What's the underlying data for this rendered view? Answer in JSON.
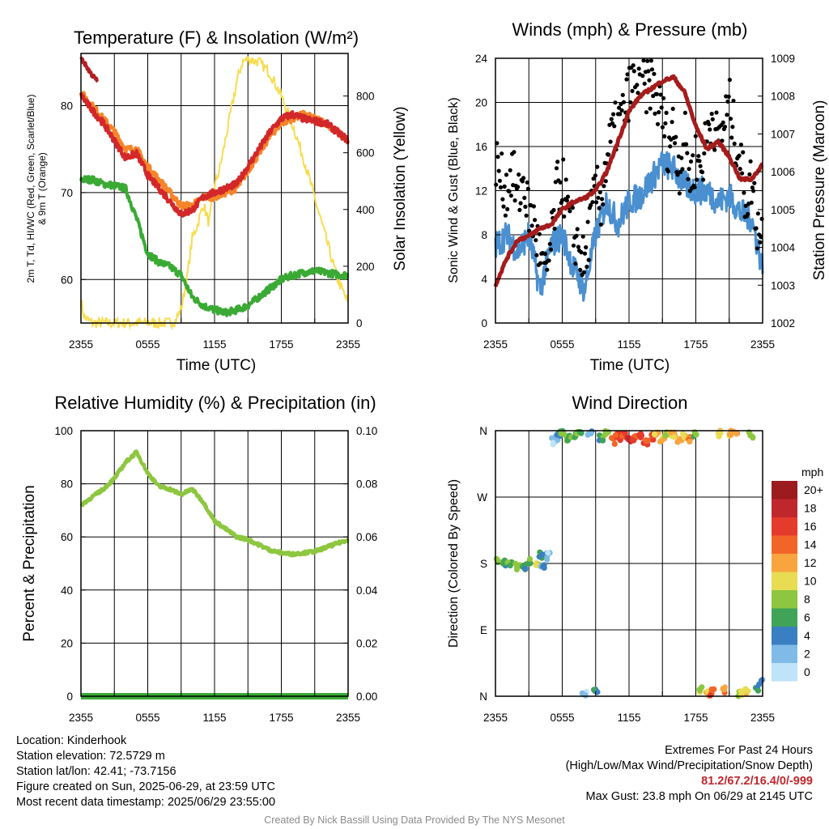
{
  "panels": {
    "temp": {
      "title": "Temperature (F) & Insolation (W/m²)",
      "ylabel_left": [
        "2m T, Td, HI/WC (Red, Green, Scarlet/Blue)",
        "& 9m T (Orange)"
      ],
      "ylabel_right": "Solar Insolation (Yellow)",
      "xlabel": "Time (UTC)"
    },
    "winds": {
      "title": "Winds (mph) & Pressure (mb)",
      "ylabel_left": "Sonic Wind & Gust (Blue, Black)",
      "ylabel_right": "Station Pressure (Maroon)",
      "xlabel": "Time (UTC)"
    },
    "rh": {
      "title": "Relative Humidity (%) & Precipitation (in)",
      "ylabel_left": "Percent & Precipitation"
    },
    "wdir": {
      "title": "Wind Direction",
      "ylabel_left": "Direction (Colored By Speed)",
      "legend_title": "mph",
      "legend_labels": [
        "20+",
        "18",
        "16",
        "14",
        "12",
        "10",
        "8",
        "6",
        "4",
        "2",
        "0"
      ],
      "legend_colors": [
        "#9b1b1e",
        "#c0272d",
        "#e53b2c",
        "#f16528",
        "#f9a53f",
        "#e8dc52",
        "#8dc63f",
        "#3fa457",
        "#3a7fc1",
        "#7fbbe6",
        "#bfe3f8"
      ]
    }
  },
  "colors": {
    "temp": "#d3282a",
    "temp9m": "#f58529",
    "dewpoint": "#3aaa35",
    "heatindex": "#b22025",
    "solar": "#f7dc4f",
    "wind": "#4a90d0",
    "gust": "#000000",
    "pressure": "#a51c1c",
    "rh": "#8dc63f",
    "precip": "#3aaa35"
  },
  "chart_data": [
    {
      "type": "line",
      "title": "Temperature (F) & Insolation (W/m²)",
      "xlabel": "Time (UTC)",
      "x_ticks": [
        "2355",
        "0555",
        "1155",
        "1755",
        "2355"
      ],
      "ylim_left": [
        55,
        86
      ],
      "yticks_left": [
        "60",
        "70",
        "80"
      ],
      "ylim_right": [
        0,
        950
      ],
      "yticks_right": [
        "0",
        "200",
        "400",
        "600",
        "800"
      ],
      "series": [
        {
          "name": "2m T",
          "axis": "left",
          "x": [
            0,
            1,
            2,
            3,
            4,
            5,
            6,
            7,
            8,
            9,
            10,
            11,
            12,
            13,
            14,
            15,
            16,
            17,
            18,
            19,
            20,
            21,
            22,
            23,
            24
          ],
          "y": [
            81.2,
            79.5,
            78,
            76,
            74,
            74.5,
            72,
            70.5,
            69,
            67.5,
            68,
            69.5,
            70,
            70.5,
            71,
            73,
            75,
            77,
            78.5,
            79,
            78.5,
            78.2,
            78,
            77,
            76
          ]
        },
        {
          "name": "9m T",
          "axis": "left",
          "x": [
            0,
            1,
            2,
            3,
            4,
            5,
            6,
            7,
            8,
            9,
            10,
            11,
            12,
            13,
            14,
            15,
            16,
            17,
            18,
            19,
            20,
            21,
            22,
            23,
            24
          ],
          "y": [
            81.5,
            80,
            78.5,
            77,
            75,
            75,
            73,
            71.5,
            70,
            68.5,
            68.5,
            69.5,
            69.5,
            70,
            70.5,
            72.5,
            74.5,
            76.5,
            78,
            78.5,
            79,
            78.5,
            78,
            77,
            76
          ]
        },
        {
          "name": "Td",
          "axis": "left",
          "x": [
            0,
            1,
            2,
            3,
            4,
            5,
            6,
            7,
            8,
            9,
            10,
            11,
            12,
            13,
            14,
            15,
            16,
            17,
            18,
            19,
            20,
            21,
            22,
            23,
            24
          ],
          "y": [
            71.5,
            71.5,
            71,
            70.8,
            70.5,
            67,
            63,
            62,
            61.5,
            60.5,
            58,
            57,
            56.5,
            56.2,
            56.5,
            57,
            58,
            59,
            60,
            60.5,
            60.8,
            61,
            60.8,
            60.6,
            60.5
          ]
        },
        {
          "name": "HI/WC",
          "axis": "left",
          "x": [
            0,
            0.5,
            1,
            1.5
          ],
          "y": [
            85.5,
            84.5,
            83.5,
            82.8
          ]
        },
        {
          "name": "Solar Insolation",
          "axis": "right",
          "x": [
            0,
            0.3,
            1,
            2,
            3,
            4,
            5,
            6,
            7,
            8,
            8.5,
            9,
            9.5,
            10,
            10.5,
            11,
            11.5,
            12,
            12.5,
            13,
            13.5,
            14,
            14.5,
            15,
            16,
            17,
            18,
            19,
            20,
            21,
            22,
            23,
            24
          ],
          "y": [
            80,
            20,
            0,
            0,
            0,
            0,
            0,
            0,
            0,
            0,
            10,
            50,
            150,
            300,
            350,
            420,
            350,
            480,
            550,
            650,
            750,
            850,
            920,
            930,
            920,
            880,
            800,
            700,
            580,
            440,
            300,
            160,
            70
          ]
        }
      ]
    },
    {
      "type": "line",
      "title": "Winds (mph) & Pressure (mb)",
      "xlabel": "Time (UTC)",
      "x_ticks": [
        "2355",
        "0555",
        "1155",
        "1755",
        "2355"
      ],
      "ylim_left": [
        0,
        24
      ],
      "yticks_left": [
        "0",
        "4",
        "8",
        "12",
        "16",
        "20",
        "24"
      ],
      "ylim_right": [
        1002,
        1009
      ],
      "yticks_right": [
        "1002",
        "1003",
        "1004",
        "1005",
        "1006",
        "1007",
        "1008",
        "1009"
      ],
      "series": [
        {
          "name": "Sonic Wind",
          "axis": "left",
          "x": [
            0,
            1,
            2,
            3,
            4,
            5,
            6,
            7,
            8,
            9,
            10,
            11,
            12,
            13,
            14,
            15,
            16,
            17,
            18,
            19,
            20,
            21,
            22,
            23,
            24
          ],
          "y": [
            7,
            8,
            6.5,
            8,
            3,
            7,
            8,
            5,
            3,
            8,
            11,
            9,
            11,
            11.5,
            13,
            14.5,
            14,
            12.5,
            12,
            12,
            11,
            11.5,
            10,
            9.5,
            5
          ]
        },
        {
          "name": "Gust",
          "axis": "left",
          "x": [
            0,
            0.5,
            1,
            1.5,
            2,
            2.5,
            3,
            3.5,
            4,
            4.5,
            5,
            5.5,
            6,
            6.5,
            7,
            7.5,
            8,
            8.5,
            9,
            9.5,
            10,
            10.5,
            11,
            11.5,
            12,
            12.5,
            13,
            13.5,
            14,
            14.5,
            15,
            15.5,
            16,
            16.5,
            17,
            17.5,
            18,
            18.5,
            19,
            19.5,
            20,
            20.5,
            21,
            21.5,
            22,
            22.5,
            23,
            23.5,
            24
          ],
          "y": [
            15,
            13,
            12,
            14,
            11,
            13,
            10,
            9,
            6,
            4,
            7,
            12,
            13,
            10,
            8,
            7,
            5,
            9,
            12,
            11,
            15,
            17,
            18,
            19,
            21,
            22,
            23,
            21,
            22,
            20,
            19,
            16,
            18,
            14,
            17,
            13,
            15,
            14,
            17,
            19,
            16,
            18,
            20,
            17,
            15,
            11,
            13,
            9,
            8
          ]
        },
        {
          "name": "Station Pressure",
          "axis": "right",
          "x": [
            0,
            1,
            2,
            3,
            4,
            5,
            6,
            7,
            8,
            9,
            10,
            11,
            12,
            13,
            14,
            15,
            16,
            17,
            18,
            19,
            20,
            21,
            22,
            23,
            24
          ],
          "y": [
            1003,
            1003.7,
            1004.2,
            1004.3,
            1004.5,
            1004.6,
            1005,
            1005.2,
            1005.3,
            1005.5,
            1006,
            1006.8,
            1007.6,
            1008,
            1008.2,
            1008.4,
            1008.5,
            1008.1,
            1007.2,
            1006.6,
            1006.8,
            1006.4,
            1005.8,
            1005.8,
            1006.2
          ]
        }
      ]
    },
    {
      "type": "line",
      "title": "Relative Humidity (%) & Precipitation (in)",
      "x_ticks": [
        "2355",
        "0555",
        "1155",
        "1755",
        "2355"
      ],
      "ylim_left": [
        0,
        100
      ],
      "yticks_left": [
        "0",
        "20",
        "40",
        "60",
        "80",
        "100"
      ],
      "ylim_right": [
        0,
        0.1
      ],
      "yticks_right": [
        "0.00",
        "0.02",
        "0.04",
        "0.06",
        "0.08",
        "0.10"
      ],
      "series": [
        {
          "name": "Relative Humidity",
          "axis": "left",
          "x": [
            0,
            1,
            2,
            3,
            4,
            5,
            6,
            7,
            8,
            9,
            10,
            11,
            12,
            13,
            14,
            15,
            16,
            17,
            18,
            19,
            20,
            21,
            22,
            23,
            24
          ],
          "y": [
            72,
            75,
            78,
            82,
            88,
            92,
            84,
            79,
            78,
            76,
            78,
            73,
            66,
            63,
            60,
            59,
            57,
            55,
            54,
            53.5,
            54,
            54.5,
            56,
            57.5,
            59
          ]
        },
        {
          "name": "Precipitation",
          "axis": "right",
          "x": [
            0,
            24
          ],
          "y": [
            0,
            0
          ]
        }
      ]
    },
    {
      "type": "scatter",
      "title": "Wind Direction",
      "x_ticks": [
        "2355",
        "0555",
        "1155",
        "1755",
        "2355"
      ],
      "yticks_left": [
        "N",
        "E",
        "S",
        "W",
        "N"
      ],
      "ylim_left": [
        0,
        360
      ],
      "series": [
        {
          "name": "Wind Direction",
          "x": [
            0.2,
            0.8,
            1.3,
            2,
            2.6,
            3.2,
            3.7,
            4,
            4.3,
            4.7,
            5.2,
            5.6,
            6,
            6.5,
            7,
            7.5,
            8,
            8.5,
            9,
            9.5,
            10,
            10.5,
            11,
            11.5,
            12,
            12.5,
            13,
            13.5,
            14,
            14.5,
            15,
            15.5,
            16,
            16.5,
            17,
            17.5,
            18,
            18.5,
            19,
            19.5,
            20,
            20.5,
            21,
            21.5,
            22,
            22.5,
            23,
            23.5,
            24
          ],
          "y": [
            185,
            180,
            178,
            176,
            175,
            182,
            178,
            192,
            174,
            190,
            345,
            352,
            358,
            350,
            355,
            357,
            2,
            356,
            10,
            350,
            358,
            346,
            352,
            355,
            348,
            350,
            354,
            346,
            352,
            358,
            350,
            355,
            354,
            348,
            352,
            350,
            356,
            10,
            2,
            5,
            357,
            8,
            355,
            358,
            4,
            6,
            355,
            12,
            18
          ],
          "speed": [
            7,
            6,
            8,
            7,
            6,
            7,
            8,
            5,
            4,
            2,
            2,
            3,
            6,
            7,
            8,
            7,
            1,
            2,
            4,
            6,
            9,
            13,
            16,
            16,
            17,
            15,
            16,
            14,
            15,
            11,
            12,
            9,
            11,
            12,
            10,
            13,
            8,
            9,
            12,
            14,
            11,
            12,
            10,
            13,
            9,
            11,
            8,
            5,
            4
          ]
        }
      ]
    }
  ],
  "footer": {
    "location": "Location: Kinderhook",
    "elevation": "Station elevation: 72.5729 m",
    "latlon": "Station lat/lon: 42.41; -73.7156",
    "created": "Figure created on Sun, 2025-06-29, at 23:59 UTC",
    "recent": "Most recent data timestamp: 2025/06/29 23:55:00",
    "extremes_title": "Extremes For Past 24 Hours",
    "extremes_sub": "(High/Low/Max Wind/Precipitation/Snow Depth)",
    "extremes_values": "81.2/67.2/16.4/0/-999",
    "max_gust": "Max Gust: 23.8 mph On 06/29 at 2145 UTC",
    "credit": "Created By Nick Bassill Using Data Provided By The NYS Mesonet"
  }
}
